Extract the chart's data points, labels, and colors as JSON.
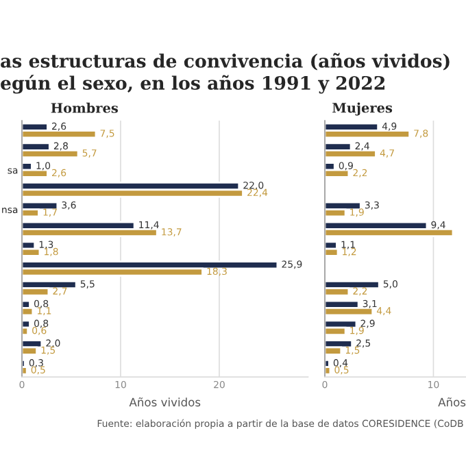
{
  "chart_data": [
    {
      "type": "bar",
      "orientation": "horizontal",
      "title": "as estructuras de convivencia (años vividos)\negún el sexo, en los años 1991 y 2022",
      "subtitle": "Hombres",
      "xlabel": "Años vividos",
      "categories": [
        null,
        null,
        "sa",
        null,
        "nsa",
        null,
        null,
        null,
        null,
        null,
        null,
        null,
        null
      ],
      "series": [
        {
          "color": "#1f2d4f",
          "values": [
            2.6,
            2.8,
            1.0,
            22.0,
            3.6,
            11.4,
            1.3,
            25.9,
            5.5,
            0.8,
            0.8,
            2.0,
            0.3
          ],
          "value_labels": [
            "2,6",
            "2,8",
            "1,0",
            "22,0",
            "3,6",
            "11,4",
            "1,3",
            "25,9",
            "5,5",
            "0,8",
            "0,8",
            "2,0",
            "0,3"
          ]
        },
        {
          "color": "#c39a3f",
          "values": [
            7.5,
            5.7,
            2.6,
            22.4,
            1.7,
            13.7,
            1.8,
            18.3,
            2.7,
            1.1,
            0.6,
            1.5,
            0.5
          ],
          "value_labels": [
            "7,5",
            "5,7",
            "2,6",
            "22,4",
            "1,7",
            "13,7",
            "1,8",
            "18,3",
            "2,7",
            "1,1",
            "0,6",
            "1,5",
            "0,5"
          ]
        }
      ],
      "xlim": [
        0,
        29
      ],
      "xticks": [
        0,
        10,
        20
      ],
      "grid": "x"
    },
    {
      "type": "bar",
      "orientation": "horizontal",
      "subtitle": "Mujeres",
      "xlabel": "Años",
      "categories": [
        null,
        null,
        null,
        null,
        null,
        null,
        null,
        null,
        null,
        null,
        null,
        null,
        null
      ],
      "series": [
        {
          "color": "#1f2d4f",
          "values": [
            4.9,
            2.4,
            0.9,
            null,
            3.3,
            9.4,
            1.1,
            null,
            5.0,
            3.1,
            2.9,
            2.5,
            0.4
          ],
          "value_labels": [
            "4,9",
            "2,4",
            "0,9",
            null,
            "3,3",
            "9,4",
            "1,1",
            null,
            "5,0",
            "3,1",
            "2,9",
            "2,5",
            "0,4"
          ]
        },
        {
          "color": "#c39a3f",
          "values": [
            7.8,
            4.7,
            2.2,
            null,
            1.9,
            11.8,
            1.2,
            null,
            2.2,
            4.4,
            1.9,
            1.5,
            0.5
          ],
          "value_labels": [
            "7,8",
            "4,7",
            "2,2",
            null,
            "1,9",
            null,
            "1,2",
            null,
            "2,2",
            "4,4",
            "1,9",
            "1,5",
            "0,5"
          ]
        }
      ],
      "xlim": [
        0,
        13
      ],
      "xticks": [
        0,
        10
      ],
      "grid": "x",
      "tick_labels": "x",
      "annotations": [
        "Fuente: elaboración propia a partir de la base de datos CORESIDENCE (CoDB"
      ]
    }
  ]
}
